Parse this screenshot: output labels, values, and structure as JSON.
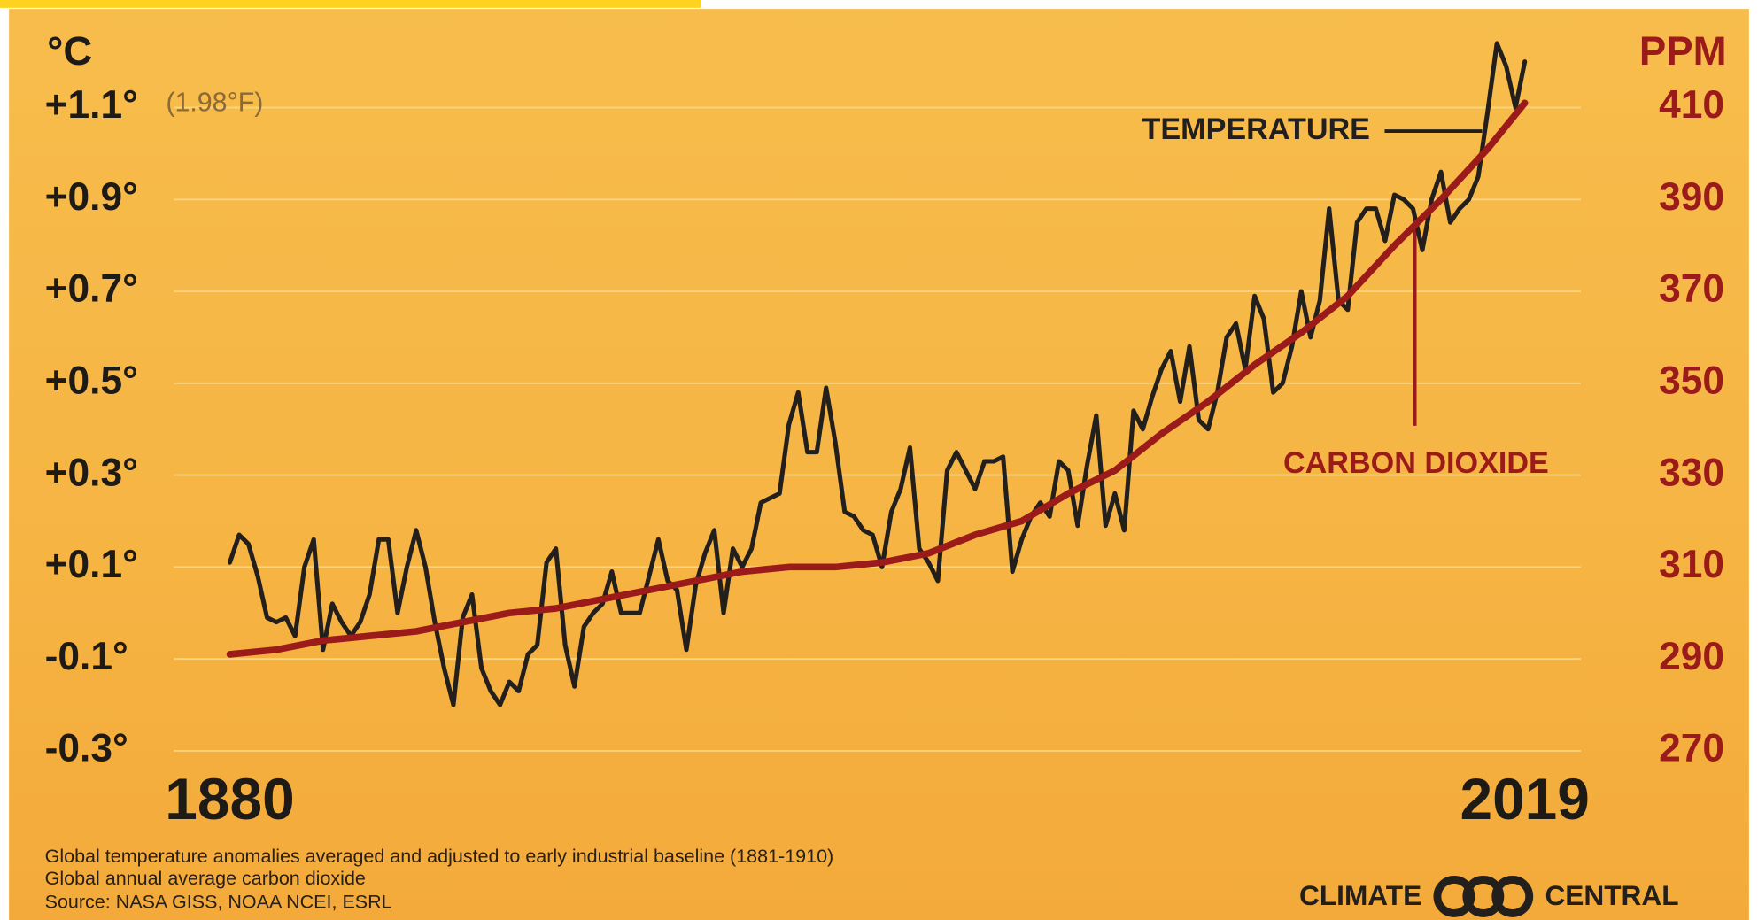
{
  "chart_data": {
    "type": "line",
    "y_label": "°C",
    "y2_label": "PPM",
    "annotation": "(1.98°F)",
    "xlim": [
      1880,
      2019
    ],
    "xticks": [
      1880,
      2019
    ],
    "ylim": [
      -0.35,
      1.25
    ],
    "yticks": [
      {
        "value": -0.3,
        "label": "-0.3°"
      },
      {
        "value": -0.1,
        "label": "-0.1°"
      },
      {
        "value": 0.1,
        "label": "+0.1°"
      },
      {
        "value": 0.3,
        "label": "+0.3°"
      },
      {
        "value": 0.5,
        "label": "+0.5°"
      },
      {
        "value": 0.7,
        "label": "+0.7°"
      },
      {
        "value": 0.9,
        "label": "+0.9°"
      },
      {
        "value": 1.1,
        "label": "+1.1°"
      }
    ],
    "y2lim": [
      265,
      425
    ],
    "y2ticks": [
      270,
      290,
      310,
      330,
      350,
      370,
      390,
      410
    ],
    "grid": true,
    "series": [
      {
        "name": "TEMPERATURE",
        "color": "#231f1c",
        "x": [
          1880,
          1881,
          1882,
          1883,
          1884,
          1885,
          1886,
          1887,
          1888,
          1889,
          1890,
          1891,
          1892,
          1893,
          1894,
          1895,
          1896,
          1897,
          1898,
          1899,
          1900,
          1901,
          1902,
          1903,
          1904,
          1905,
          1906,
          1907,
          1908,
          1909,
          1910,
          1911,
          1912,
          1913,
          1914,
          1915,
          1916,
          1917,
          1918,
          1919,
          1920,
          1921,
          1922,
          1923,
          1924,
          1925,
          1926,
          1927,
          1928,
          1929,
          1930,
          1931,
          1932,
          1933,
          1934,
          1935,
          1936,
          1937,
          1938,
          1939,
          1940,
          1941,
          1942,
          1943,
          1944,
          1945,
          1946,
          1947,
          1948,
          1949,
          1950,
          1951,
          1952,
          1953,
          1954,
          1955,
          1956,
          1957,
          1958,
          1959,
          1960,
          1961,
          1962,
          1963,
          1964,
          1965,
          1966,
          1967,
          1968,
          1969,
          1970,
          1971,
          1972,
          1973,
          1974,
          1975,
          1976,
          1977,
          1978,
          1979,
          1980,
          1981,
          1982,
          1983,
          1984,
          1985,
          1986,
          1987,
          1988,
          1989,
          1990,
          1991,
          1992,
          1993,
          1994,
          1995,
          1996,
          1997,
          1998,
          1999,
          2000,
          2001,
          2002,
          2003,
          2004,
          2005,
          2006,
          2007,
          2008,
          2009,
          2010,
          2011,
          2012,
          2013,
          2014,
          2015,
          2016,
          2017,
          2018,
          2019
        ],
        "values": [
          0.11,
          0.17,
          0.15,
          0.08,
          -0.01,
          -0.02,
          -0.01,
          -0.05,
          0.1,
          0.16,
          -0.08,
          0.02,
          -0.02,
          -0.05,
          -0.02,
          0.04,
          0.16,
          0.16,
          0.0,
          0.1,
          0.18,
          0.1,
          -0.02,
          -0.12,
          -0.2,
          -0.01,
          0.04,
          -0.12,
          -0.17,
          -0.2,
          -0.15,
          -0.17,
          -0.09,
          -0.07,
          0.11,
          0.14,
          -0.07,
          -0.16,
          -0.03,
          0.0,
          0.02,
          0.09,
          0.0,
          0.0,
          0.0,
          0.08,
          0.16,
          0.07,
          0.05,
          -0.08,
          0.06,
          0.13,
          0.18,
          0.0,
          0.14,
          0.1,
          0.14,
          0.24,
          0.25,
          0.26,
          0.41,
          0.48,
          0.35,
          0.35,
          0.49,
          0.37,
          0.22,
          0.21,
          0.18,
          0.17,
          0.1,
          0.22,
          0.27,
          0.36,
          0.14,
          0.11,
          0.07,
          0.31,
          0.35,
          0.31,
          0.27,
          0.33,
          0.33,
          0.34,
          0.09,
          0.16,
          0.21,
          0.24,
          0.21,
          0.33,
          0.31,
          0.19,
          0.32,
          0.43,
          0.19,
          0.26,
          0.18,
          0.44,
          0.4,
          0.47,
          0.53,
          0.57,
          0.46,
          0.58,
          0.42,
          0.4,
          0.48,
          0.6,
          0.63,
          0.53,
          0.69,
          0.64,
          0.48,
          0.5,
          0.58,
          0.7,
          0.6,
          0.68,
          0.88,
          0.68,
          0.66,
          0.85,
          0.88,
          0.88,
          0.81,
          0.91,
          0.9,
          0.88,
          0.79,
          0.9,
          0.96,
          0.85,
          0.88,
          0.9,
          0.95,
          1.09,
          1.24,
          1.19,
          1.1,
          1.2
        ]
      },
      {
        "name": "CARBON DIOXIDE",
        "color": "#9b1b1b",
        "axis": "y2",
        "x": [
          1880,
          1885,
          1890,
          1895,
          1900,
          1905,
          1910,
          1915,
          1920,
          1925,
          1930,
          1935,
          1940,
          1945,
          1950,
          1955,
          1960,
          1965,
          1970,
          1975,
          1980,
          1985,
          1990,
          1995,
          2000,
          2005,
          2010,
          2015,
          2019
        ],
        "values": [
          291,
          292,
          294,
          295,
          296,
          298,
          300,
          301,
          303,
          305,
          307,
          309,
          310,
          310,
          311,
          313,
          317,
          320,
          326,
          331,
          339,
          346,
          354,
          361,
          369,
          380,
          390,
          401,
          411
        ]
      }
    ],
    "notes": [
      "Global temperature anomalies averaged and adjusted to early industrial baseline (1881-1910)",
      "Global annual average carbon dioxide",
      "Source: NASA GISS, NOAA NCEI, ESRL"
    ],
    "brand": [
      "CLIMATE",
      "CENTRAL"
    ]
  }
}
